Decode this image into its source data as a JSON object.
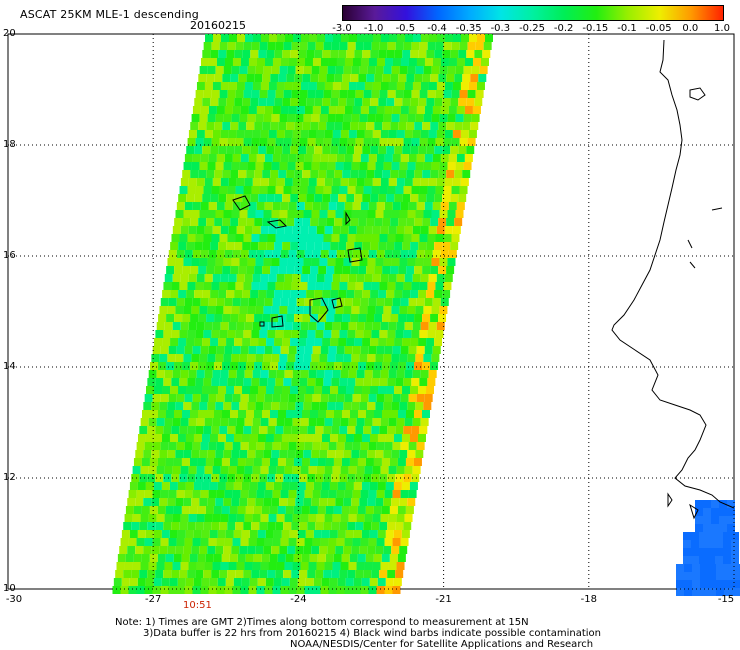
{
  "header": {
    "title": "ASCAT 25KM MLE-1 descending",
    "date": "20160215"
  },
  "colorbar": {
    "ticks": [
      "-3.0",
      "-1.0",
      "-0.5",
      "-0.4",
      "-0.35",
      "-0.3",
      "-0.25",
      "-0.2",
      "-0.15",
      "-0.1",
      "-0.05",
      "0.0",
      "1.0"
    ],
    "colors": [
      "#2a0033",
      "#5a1a99",
      "#3311dd",
      "#0066ff",
      "#00aaff",
      "#00e5e5",
      "#00f0a0",
      "#00ee55",
      "#22ee11",
      "#99ee00",
      "#eeee00",
      "#ff9900",
      "#ff2200"
    ]
  },
  "map": {
    "y_ticks": [
      "20",
      "18",
      "16",
      "14",
      "12",
      "10"
    ],
    "x_ticks": [
      "-30",
      "-27",
      "-24",
      "-21",
      "-18",
      "-15"
    ],
    "lat_range": [
      10,
      20
    ],
    "lon_range": [
      -30,
      -15
    ],
    "swath_time": "10:51"
  },
  "notes": {
    "line1": "Note: 1) Times are GMT 2)Times along bottom correspond to measurement at 15N",
    "line2": "3)Data buffer is 22 hrs from 20160215 4) Black wind barbs indicate possible contamination",
    "line3": "NOAA/NESDIS/Center for Satellite Applications and Research"
  }
}
